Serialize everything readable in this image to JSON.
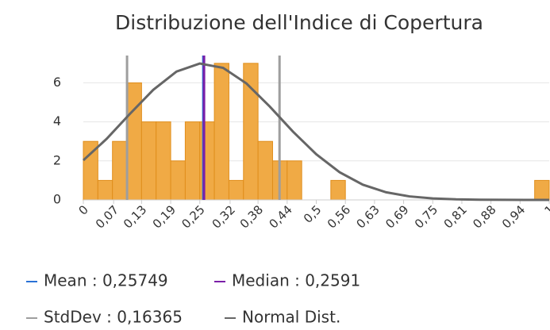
{
  "chart_data": {
    "type": "histogram",
    "title": "Distribuzione dell'Indice di Copertura",
    "bins": [
      0,
      0.03125,
      0.0625,
      0.09375,
      0.125,
      0.15625,
      0.1875,
      0.21875,
      0.25,
      0.28125,
      0.3125,
      0.34375,
      0.375,
      0.40625,
      0.4375,
      0.46875,
      0.5,
      0.53125,
      0.5625,
      0.59375,
      0.625,
      0.65625,
      0.6875,
      0.71875,
      0.75,
      0.78125,
      0.8125,
      0.84375,
      0.875,
      0.90625,
      0.9375,
      0.96875,
      1
    ],
    "counts": [
      3,
      1,
      3,
      6,
      4,
      4,
      2,
      4,
      4,
      7,
      1,
      7,
      3,
      2,
      2,
      0,
      0,
      1,
      0,
      0,
      0,
      0,
      0,
      0,
      0,
      0,
      0,
      0,
      0,
      0,
      0,
      1
    ],
    "color": "#f0aa45",
    "edge_color": "#e08e1c",
    "xlim": [
      0,
      1
    ],
    "xticks": [
      0,
      {
        "value": 0.065,
        "label": "0,07"
      },
      {
        "value": 0.125,
        "label": "0,13"
      },
      {
        "value": 0.1875,
        "label": "0,19"
      },
      {
        "value": 0.25,
        "label": "0,25"
      },
      {
        "value": 0.315,
        "label": "0,32"
      },
      {
        "value": 0.375,
        "label": "0,38"
      },
      {
        "value": 0.4375,
        "label": "0,44"
      },
      {
        "value": 0.5,
        "label": "0,5"
      },
      {
        "value": 0.5625,
        "label": "0,56"
      },
      {
        "value": 0.625,
        "label": "0,63"
      },
      {
        "value": 0.6875,
        "label": "0,69"
      },
      {
        "value": 0.75,
        "label": "0,75"
      },
      {
        "value": 0.8125,
        "label": "0,81"
      },
      {
        "value": 0.875,
        "label": "0,88"
      },
      {
        "value": 0.9375,
        "label": "0,94"
      },
      1
    ],
    "ylim": [
      0,
      7.4
    ],
    "yticks": [
      0,
      2,
      4,
      6
    ],
    "grid": true,
    "lines": [
      {
        "name": "Mean : 0,25749",
        "value": 0.25749,
        "color": "#2a72d6"
      },
      {
        "name": "Median : 0,2591",
        "value": 0.2591,
        "color": "#7b1fa8"
      },
      {
        "name": "StdDev : 0,16365",
        "value": 0.16365,
        "color": "#9e9e9e"
      }
    ],
    "series": [
      {
        "name": "Normal Dist.",
        "color": "#666666",
        "x": [
          0,
          0.05,
          0.1,
          0.15,
          0.2,
          0.25,
          0.3,
          0.35,
          0.4,
          0.45,
          0.5,
          0.55,
          0.6,
          0.65,
          0.7,
          0.75,
          0.8,
          0.85,
          0.9,
          0.95,
          1
        ],
        "values": [
          2.03,
          3.13,
          4.41,
          5.64,
          6.58,
          6.99,
          6.77,
          5.97,
          4.79,
          3.5,
          2.34,
          1.42,
          0.78,
          0.39,
          0.18,
          0.076,
          0.029,
          0.01,
          0.003,
          0.001,
          0
        ]
      }
    ]
  }
}
